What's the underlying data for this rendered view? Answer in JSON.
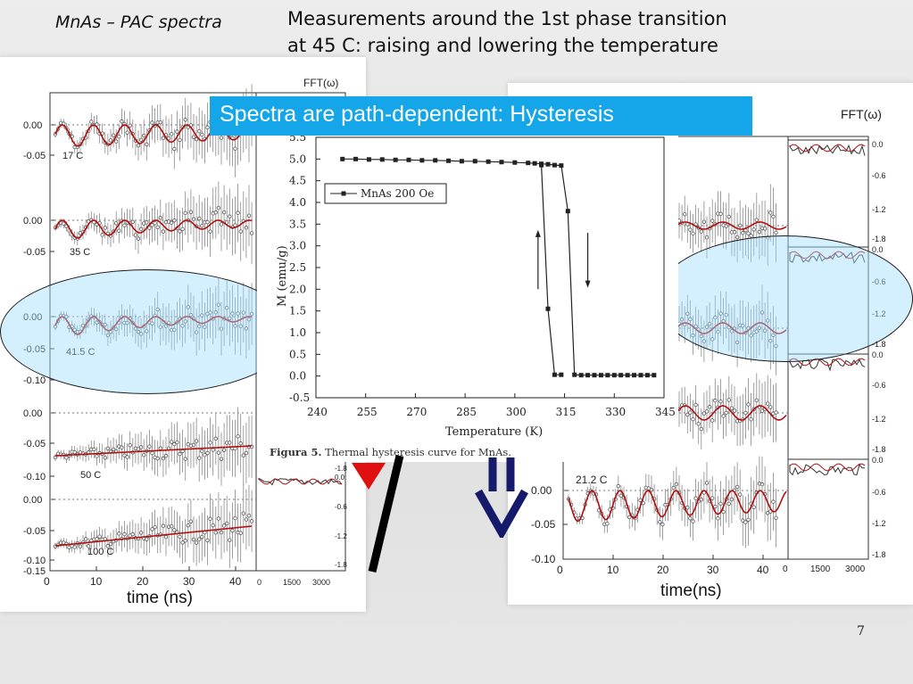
{
  "slide": {
    "title_left": "MnAs – PAC spectra",
    "title_right_line1": "Measurements around the 1st phase transition",
    "title_right_line2": "at 45 C: raising and lowering the temperature",
    "banner": "Spectra are path-dependent:  Hysteresis",
    "page_number": "7"
  },
  "left_panel": {
    "fft_label": "FFT(ω)",
    "time_label": "time (ns)",
    "spectra_labels": [
      "17 C",
      "35 C",
      "41.5 C",
      "50 C",
      "100 C"
    ],
    "y_ticks": [
      "0.00",
      "-0.05",
      "0.00",
      "-0.05",
      "0.00",
      "-0.05",
      "-0.10",
      "0.00",
      "-0.05",
      "-0.10",
      "0.00",
      "-0.05",
      "-0.10",
      "-0.15"
    ],
    "x_ticks": [
      "0",
      "10",
      "20",
      "30",
      "40"
    ],
    "fft_x_ticks": [
      "0",
      "1500",
      "3000"
    ],
    "fft_y_ticks": [
      "-1.8",
      "0.0",
      "-0.6",
      "-1.2",
      "-1.8"
    ]
  },
  "right_panel": {
    "fft_label": "FFT(ω)",
    "time_label": "time(ns)",
    "spectrum_label": "21.2 C",
    "y_ticks": [
      "0.00",
      "-0.05",
      "-0.10"
    ],
    "x_ticks": [
      "0",
      "10",
      "20",
      "30",
      "40"
    ],
    "fft_x_ticks": [
      "0",
      "1500",
      "3000"
    ],
    "fft_y_ticks": [
      "0.0",
      "-0.6",
      "-1.2",
      "-1.8",
      "0.0",
      "-0.6",
      "-1.2",
      "-1.8",
      "0.0",
      "-0.6",
      "-1.2",
      "-1.8",
      "0.0",
      "-0.6",
      "-1.2",
      "-1.8"
    ]
  },
  "figure": {
    "caption_bold": "Figura 5.",
    "caption_text": " Thermal hysteresis curve for MnAs.",
    "legend": "MnAs 200 Oe"
  },
  "chart_data": {
    "type": "line",
    "xlabel": "Temperature (K)",
    "ylabel": "M (emu/g)",
    "xlim": [
      240,
      345
    ],
    "ylim": [
      -0.5,
      5.5
    ],
    "x_ticks": [
      240,
      255,
      270,
      285,
      300,
      315,
      330,
      345
    ],
    "y_ticks": [
      -0.5,
      0.0,
      0.5,
      1.0,
      1.5,
      2.0,
      2.5,
      3.0,
      3.5,
      4.0,
      4.5,
      5.0,
      5.5
    ],
    "series": [
      {
        "name": "MnAs 200 Oe",
        "x": [
          248,
          252,
          256,
          260,
          264,
          268,
          272,
          276,
          280,
          284,
          288,
          292,
          296,
          300,
          304,
          306,
          308,
          310,
          312,
          314,
          316,
          318,
          320,
          322,
          324,
          326,
          328,
          330,
          332,
          334,
          336,
          338,
          340,
          342
        ],
        "y": [
          5.0,
          5.0,
          4.99,
          4.99,
          4.98,
          4.98,
          4.97,
          4.97,
          4.96,
          4.95,
          4.95,
          4.94,
          4.93,
          4.92,
          4.91,
          4.9,
          4.89,
          4.88,
          4.86,
          4.85,
          3.8,
          0.03,
          0.02,
          0.02,
          0.02,
          0.02,
          0.02,
          0.02,
          0.02,
          0.02,
          0.02,
          0.02,
          0.02,
          0.02
        ]
      },
      {
        "name": "",
        "x": [
          308,
          310,
          312,
          314
        ],
        "y": [
          4.86,
          1.55,
          0.03,
          0.03
        ]
      }
    ]
  }
}
